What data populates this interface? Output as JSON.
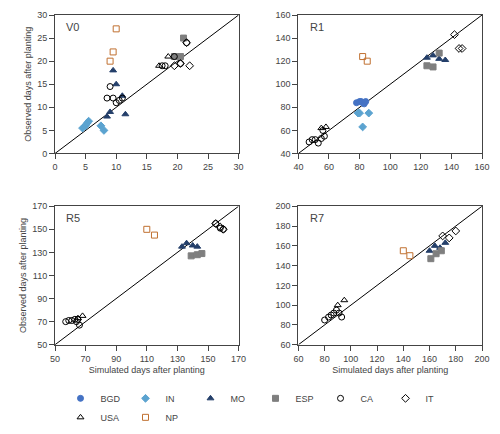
{
  "chart_data": [
    {
      "type": "scatter",
      "title": "V0",
      "ylabel": "Observed days after planting",
      "xlim": [
        0,
        30
      ],
      "ylim": [
        0,
        30
      ],
      "xticks": [
        0,
        5,
        10,
        15,
        20,
        25,
        30
      ],
      "yticks": [
        0,
        5,
        10,
        15,
        20,
        25,
        30
      ],
      "grid": false,
      "legend": "bottom",
      "series": [
        {
          "name": "BGD",
          "color": "#4472C4",
          "marker": "circle",
          "x": [],
          "values": []
        },
        {
          "name": "IN",
          "color": "#5BA3D0",
          "marker": "diamond",
          "x": [
            4.5,
            5.0,
            5.2,
            5.5,
            7.5,
            8.0
          ],
          "values": [
            5.5,
            6.0,
            6.5,
            7.0,
            6.0,
            5.0
          ]
        },
        {
          "name": "MO",
          "color": "#243F6A",
          "marker": "triangle-up",
          "x": [
            8.5,
            9.0,
            9.5,
            10.0,
            11.0,
            11.5
          ],
          "values": [
            8.0,
            9.0,
            18.0,
            15.0,
            12.5,
            8.5
          ]
        },
        {
          "name": "ESP",
          "color": "#7F7F7F",
          "marker": "square",
          "x": [
            19.5,
            20.5,
            21.0
          ],
          "values": [
            21.0,
            21.0,
            25.0
          ]
        },
        {
          "name": "CA",
          "color": "#000000",
          "marker": "circle-open",
          "x": [
            8.5,
            9.0,
            9.5,
            10.0,
            10.5,
            11.0,
            17.5,
            18.0,
            19.5,
            20.5,
            21.5
          ],
          "values": [
            12.0,
            14.5,
            12.0,
            11.0,
            11.5,
            12.0,
            19.0,
            19.0,
            21.0,
            19.5,
            24.0
          ]
        },
        {
          "name": "IT",
          "color": "#000000",
          "marker": "diamond-open",
          "x": [
            19.5,
            20.5,
            21.5,
            22.0
          ],
          "values": [
            19.0,
            19.5,
            24.0,
            19.0
          ]
        },
        {
          "name": "USA",
          "color": "#000000",
          "marker": "triangle-up-open",
          "x": [
            17.0,
            18.5
          ],
          "values": [
            19.0,
            21.0
          ]
        },
        {
          "name": "NP",
          "color": "#C07030",
          "marker": "square-open",
          "x": [
            9.0,
            9.5,
            10.0
          ],
          "values": [
            20.0,
            22.0,
            27.0
          ]
        }
      ]
    },
    {
      "type": "scatter",
      "title": "R1",
      "xlim": [
        40,
        160
      ],
      "ylim": [
        40,
        160
      ],
      "xticks": [
        40,
        60,
        80,
        100,
        120,
        140,
        160
      ],
      "yticks": [
        40,
        60,
        80,
        100,
        120,
        140,
        160
      ],
      "grid": false,
      "series": [
        {
          "name": "BGD",
          "color": "#4472C4",
          "marker": "circle",
          "x": [
            78,
            80,
            81,
            82,
            83,
            84
          ],
          "values": [
            84,
            85,
            85,
            84,
            83,
            85
          ]
        },
        {
          "name": "IN",
          "color": "#5BA3D0",
          "marker": "diamond",
          "x": [
            79,
            80,
            82,
            86
          ],
          "values": [
            75,
            75,
            63,
            75
          ]
        },
        {
          "name": "MO",
          "color": "#243F6A",
          "marker": "triangle-up",
          "x": [
            124,
            128,
            132,
            136
          ],
          "values": [
            123,
            125,
            122,
            121
          ]
        },
        {
          "name": "ESP",
          "color": "#7F7F7F",
          "marker": "square",
          "x": [
            124,
            128,
            132
          ],
          "values": [
            116,
            115,
            127
          ]
        },
        {
          "name": "CA",
          "color": "#000000",
          "marker": "circle-open",
          "x": [
            47,
            49,
            51,
            53,
            55,
            56,
            57
          ],
          "values": [
            50,
            52,
            52,
            49,
            53,
            60,
            55
          ]
        },
        {
          "name": "IT",
          "color": "#000000",
          "marker": "diamond-open",
          "x": [
            142,
            145,
            147
          ],
          "values": [
            143,
            131,
            131
          ]
        },
        {
          "name": "USA",
          "color": "#000000",
          "marker": "triangle-up-open",
          "x": [
            55,
            58
          ],
          "values": [
            62,
            63
          ]
        },
        {
          "name": "NP",
          "color": "#C07030",
          "marker": "square-open",
          "x": [
            82,
            85
          ],
          "values": [
            124,
            120
          ]
        }
      ]
    },
    {
      "type": "scatter",
      "title": "R5",
      "xlabel": "Simulated days after planting",
      "ylabel": "Observed days after planting",
      "xlim": [
        50,
        170
      ],
      "ylim": [
        50,
        170
      ],
      "xticks": [
        50,
        70,
        90,
        110,
        130,
        150,
        170
      ],
      "yticks": [
        50,
        70,
        90,
        110,
        130,
        150,
        170
      ],
      "grid": false,
      "series": [
        {
          "name": "BGD",
          "color": "#4472C4",
          "marker": "circle",
          "x": [],
          "values": []
        },
        {
          "name": "IN",
          "color": "#5BA3D0",
          "marker": "diamond",
          "x": [],
          "values": []
        },
        {
          "name": "MO",
          "color": "#243F6A",
          "marker": "triangle-up",
          "x": [
            133,
            136,
            140,
            143
          ],
          "values": [
            135,
            138,
            136,
            135
          ]
        },
        {
          "name": "ESP",
          "color": "#7F7F7F",
          "marker": "square",
          "x": [
            139,
            143,
            146
          ],
          "values": [
            127,
            128,
            129
          ]
        },
        {
          "name": "CA",
          "color": "#000000",
          "marker": "circle-open",
          "x": [
            57,
            59,
            61,
            63,
            64,
            65,
            66,
            155,
            158,
            160
          ],
          "values": [
            70,
            71,
            71,
            72,
            70,
            72,
            67,
            155,
            151,
            150
          ]
        },
        {
          "name": "IT",
          "color": "#000000",
          "marker": "diamond-open",
          "x": [
            155,
            158,
            160
          ],
          "values": [
            155,
            152,
            150
          ]
        },
        {
          "name": "USA",
          "color": "#000000",
          "marker": "triangle-up-open",
          "x": [
            65,
            68
          ],
          "values": [
            73,
            75
          ]
        },
        {
          "name": "NP",
          "color": "#C07030",
          "marker": "square-open",
          "x": [
            110,
            115
          ],
          "values": [
            150,
            145
          ]
        }
      ]
    },
    {
      "type": "scatter",
      "title": "R7",
      "xlabel": "Simulated days after planting",
      "xlim": [
        60,
        200
      ],
      "ylim": [
        60,
        200
      ],
      "xticks": [
        60,
        80,
        100,
        120,
        140,
        160,
        180,
        200
      ],
      "yticks": [
        60,
        80,
        100,
        120,
        140,
        160,
        180,
        200
      ],
      "grid": false,
      "series": [
        {
          "name": "BGD",
          "color": "#4472C4",
          "marker": "circle",
          "x": [],
          "values": []
        },
        {
          "name": "IN",
          "color": "#5BA3D0",
          "marker": "diamond",
          "x": [],
          "values": []
        },
        {
          "name": "MO",
          "color": "#243F6A",
          "marker": "triangle-up",
          "x": [
            160,
            164,
            168,
            172
          ],
          "values": [
            155,
            160,
            158,
            163
          ]
        },
        {
          "name": "ESP",
          "color": "#7F7F7F",
          "marker": "square",
          "x": [
            161,
            165,
            169
          ],
          "values": [
            147,
            152,
            155
          ]
        },
        {
          "name": "CA",
          "color": "#000000",
          "marker": "circle-open",
          "x": [
            80,
            83,
            85,
            87,
            89,
            91,
            93
          ],
          "values": [
            85,
            88,
            90,
            92,
            95,
            92,
            88
          ]
        },
        {
          "name": "IT",
          "color": "#000000",
          "marker": "diamond-open",
          "x": [
            170,
            175,
            180
          ],
          "values": [
            170,
            168,
            175
          ]
        },
        {
          "name": "USA",
          "color": "#000000",
          "marker": "triangle-up-open",
          "x": [
            90,
            95
          ],
          "values": [
            100,
            105
          ]
        },
        {
          "name": "NP",
          "color": "#C07030",
          "marker": "square-open",
          "x": [
            140,
            145
          ],
          "values": [
            155,
            150
          ]
        }
      ]
    }
  ]
}
